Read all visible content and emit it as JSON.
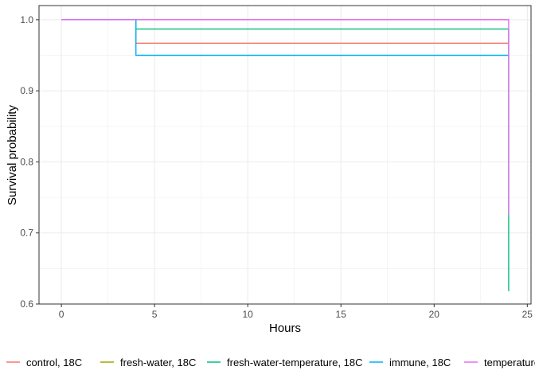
{
  "chart_data": {
    "type": "line",
    "xlabel": "Hours",
    "ylabel": "Survival probability",
    "xlim": [
      -1.2,
      25.2
    ],
    "ylim": [
      0.6,
      1.02
    ],
    "xticks": [
      0,
      5,
      10,
      15,
      20,
      25
    ],
    "yticks": [
      0.6,
      0.7,
      0.8,
      0.9,
      1.0
    ],
    "xtick_labels": [
      "0",
      "5",
      "10",
      "15",
      "20",
      "25"
    ],
    "ytick_labels": [
      "0.6",
      "0.7",
      "0.8",
      "0.9",
      "1.0"
    ],
    "grid": true,
    "legend_position": "bottom",
    "series": [
      {
        "name": "control, 18C",
        "color": "#F8766D",
        "x": [
          0,
          4,
          4,
          24
        ],
        "y": [
          1.0,
          1.0,
          0.967,
          0.967
        ]
      },
      {
        "name": "fresh-water, 18C",
        "color": "#A3A500",
        "x": [
          0,
          24
        ],
        "y": [
          1.0,
          1.0
        ]
      },
      {
        "name": "fresh-water-temperature, 18C",
        "color": "#00BF7D",
        "x": [
          0,
          4,
          4,
          24,
          24
        ],
        "y": [
          1.0,
          1.0,
          0.987,
          0.987,
          0.618
        ]
      },
      {
        "name": "immune, 18C",
        "color": "#00B0F6",
        "x": [
          0,
          4,
          4,
          24
        ],
        "y": [
          1.0,
          1.0,
          0.95,
          0.95
        ]
      },
      {
        "name": "temperature",
        "color": "#E76BF3",
        "x": [
          0,
          24,
          24
        ],
        "y": [
          1.0,
          1.0,
          0.725
        ]
      }
    ]
  }
}
